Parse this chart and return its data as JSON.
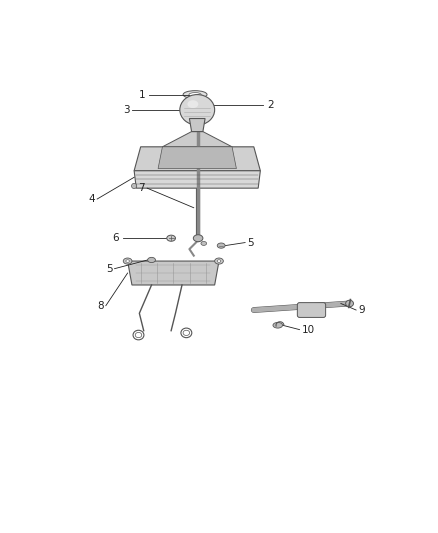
{
  "bg_color": "#ffffff",
  "line_color": "#555555",
  "label_color": "#222222",
  "figsize": [
    4.38,
    5.33
  ],
  "dpi": 100,
  "label_fs": 7.5
}
